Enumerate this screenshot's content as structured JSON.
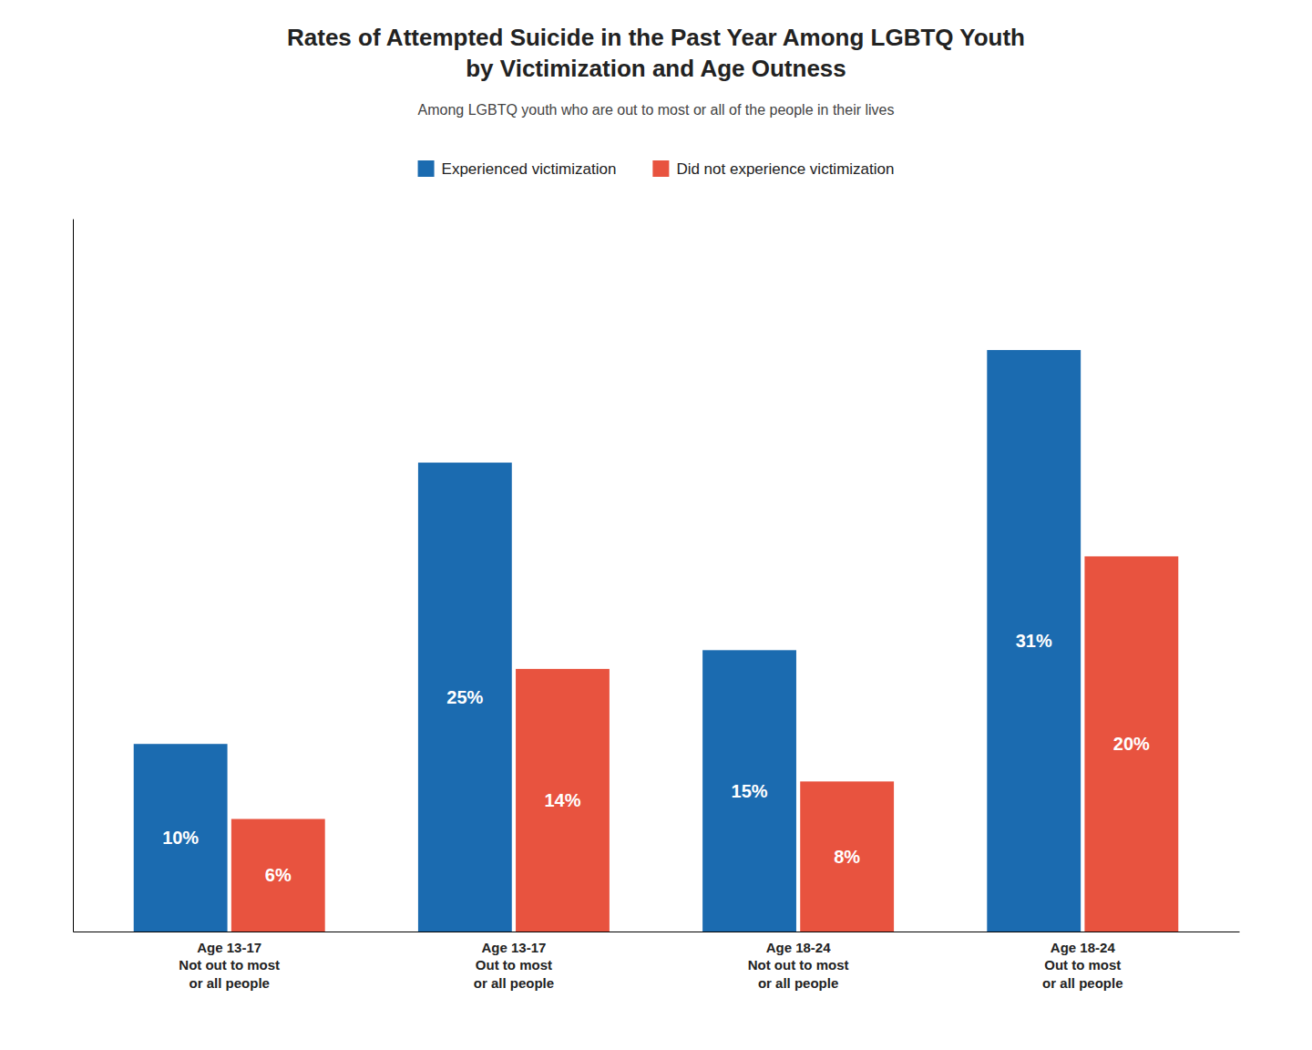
{
  "chart_data": {
    "type": "bar",
    "title": "Rates of Attempted Suicide in the Past Year Among LGBTQ Youth\nby Victimization and Age Outness",
    "subtitle": "Among LGBTQ youth who are out to most or all of the people in their lives",
    "categories": [
      "Age 13-17\nNot out to most\nor all people",
      "Age 13-17\nOut to most\nor all people",
      "Age 18-24\nNot out to most\nor all people",
      "Age 18-24\nOut to most\nor all people"
    ],
    "series": [
      {
        "name": "Experienced victimization",
        "color": "#1B6BB0",
        "values": [
          10,
          25,
          15,
          31
        ],
        "value_labels": [
          "10%",
          "25%",
          "15%",
          "31%"
        ]
      },
      {
        "name": "Did not experience victimization",
        "color": "#E8533F",
        "values": [
          6,
          14,
          8,
          20
        ],
        "value_labels": [
          "6%",
          "14%",
          "8%",
          "20%"
        ]
      }
    ],
    "ylim": [
      0,
      38
    ],
    "grid": false,
    "legend": "top",
    "data_labels": true,
    "tick_labels": "x"
  }
}
